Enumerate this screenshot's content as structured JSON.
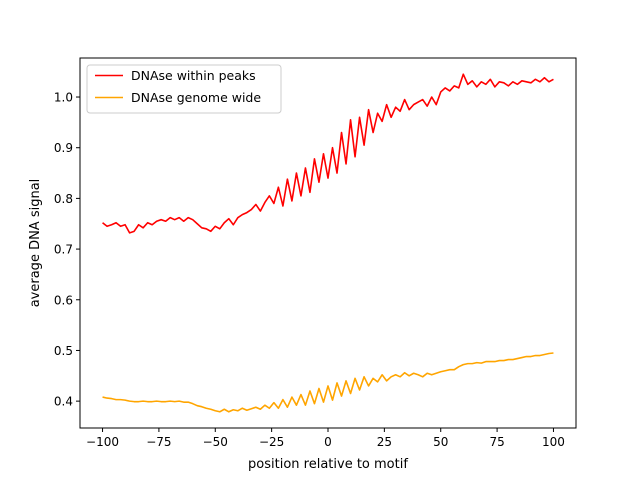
{
  "chart_data": {
    "type": "line",
    "xlabel": "position relative to motif",
    "ylabel": "average DNA signal",
    "xlim": [
      -110,
      110
    ],
    "ylim": [
      0.347,
      1.077
    ],
    "xticks": [
      -100,
      -75,
      -50,
      -25,
      0,
      25,
      50,
      75,
      100
    ],
    "xtick_labels": [
      "−100",
      "−75",
      "−50",
      "−25",
      "0",
      "25",
      "50",
      "75",
      "100"
    ],
    "yticks": [
      0.4,
      0.5,
      0.6,
      0.7,
      0.8,
      0.9,
      1.0
    ],
    "ytick_labels": [
      "0.4",
      "0.5",
      "0.6",
      "0.7",
      "0.8",
      "0.9",
      "1.0"
    ],
    "legend_position": "top-left",
    "series": [
      {
        "name": "DNAse within peaks",
        "color": "#ff0000",
        "x": [
          -100,
          -98,
          -96,
          -94,
          -92,
          -90,
          -88,
          -86,
          -84,
          -82,
          -80,
          -78,
          -76,
          -74,
          -72,
          -70,
          -68,
          -66,
          -64,
          -62,
          -60,
          -58,
          -56,
          -54,
          -52,
          -50,
          -48,
          -46,
          -44,
          -42,
          -40,
          -38,
          -36,
          -34,
          -32,
          -30,
          -28,
          -26,
          -24,
          -22,
          -20,
          -18,
          -16,
          -14,
          -12,
          -10,
          -8,
          -6,
          -4,
          -2,
          0,
          2,
          4,
          6,
          8,
          10,
          12,
          14,
          16,
          18,
          20,
          22,
          24,
          26,
          28,
          30,
          32,
          34,
          36,
          38,
          40,
          42,
          44,
          46,
          48,
          50,
          52,
          54,
          56,
          58,
          60,
          62,
          64,
          66,
          68,
          70,
          72,
          74,
          76,
          78,
          80,
          82,
          84,
          86,
          88,
          90,
          92,
          94,
          96,
          98,
          100
        ],
        "values": [
          0.752,
          0.745,
          0.748,
          0.752,
          0.745,
          0.748,
          0.732,
          0.735,
          0.748,
          0.742,
          0.752,
          0.748,
          0.755,
          0.758,
          0.755,
          0.762,
          0.758,
          0.762,
          0.755,
          0.762,
          0.758,
          0.75,
          0.742,
          0.74,
          0.735,
          0.745,
          0.74,
          0.752,
          0.76,
          0.748,
          0.762,
          0.768,
          0.772,
          0.778,
          0.788,
          0.775,
          0.792,
          0.805,
          0.79,
          0.822,
          0.785,
          0.838,
          0.795,
          0.85,
          0.805,
          0.86,
          0.812,
          0.878,
          0.832,
          0.888,
          0.84,
          0.9,
          0.85,
          0.93,
          0.868,
          0.955,
          0.882,
          0.96,
          0.905,
          0.975,
          0.93,
          0.968,
          0.952,
          0.985,
          0.96,
          0.98,
          0.972,
          0.995,
          0.975,
          0.985,
          0.99,
          0.995,
          0.982,
          1.0,
          0.985,
          1.01,
          1.018,
          1.012,
          1.022,
          1.018,
          1.045,
          1.025,
          1.032,
          1.02,
          1.03,
          1.025,
          1.035,
          1.02,
          1.03,
          1.028,
          1.022,
          1.03,
          1.025,
          1.032,
          1.03,
          1.028,
          1.035,
          1.03,
          1.038,
          1.03,
          1.035
        ]
      },
      {
        "name": "DNAse genome wide",
        "color": "#ffa500",
        "x": [
          -100,
          -98,
          -96,
          -94,
          -92,
          -90,
          -88,
          -86,
          -84,
          -82,
          -80,
          -78,
          -76,
          -74,
          -72,
          -70,
          -68,
          -66,
          -64,
          -62,
          -60,
          -58,
          -56,
          -54,
          -52,
          -50,
          -48,
          -46,
          -44,
          -42,
          -40,
          -38,
          -36,
          -34,
          -32,
          -30,
          -28,
          -26,
          -24,
          -22,
          -20,
          -18,
          -16,
          -14,
          -12,
          -10,
          -8,
          -6,
          -4,
          -2,
          0,
          2,
          4,
          6,
          8,
          10,
          12,
          14,
          16,
          18,
          20,
          22,
          24,
          26,
          28,
          30,
          32,
          34,
          36,
          38,
          40,
          42,
          44,
          46,
          48,
          50,
          52,
          54,
          56,
          58,
          60,
          62,
          64,
          66,
          68,
          70,
          72,
          74,
          76,
          78,
          80,
          82,
          84,
          86,
          88,
          90,
          92,
          94,
          96,
          98,
          100
        ],
        "values": [
          0.408,
          0.406,
          0.405,
          0.403,
          0.403,
          0.402,
          0.4,
          0.399,
          0.399,
          0.4,
          0.399,
          0.399,
          0.4,
          0.399,
          0.399,
          0.4,
          0.399,
          0.4,
          0.398,
          0.398,
          0.395,
          0.391,
          0.389,
          0.386,
          0.384,
          0.381,
          0.379,
          0.384,
          0.379,
          0.383,
          0.381,
          0.386,
          0.382,
          0.385,
          0.388,
          0.384,
          0.392,
          0.386,
          0.397,
          0.386,
          0.403,
          0.388,
          0.408,
          0.392,
          0.413,
          0.392,
          0.42,
          0.395,
          0.425,
          0.398,
          0.43,
          0.402,
          0.436,
          0.41,
          0.44,
          0.415,
          0.445,
          0.422,
          0.448,
          0.43,
          0.445,
          0.438,
          0.452,
          0.44,
          0.448,
          0.452,
          0.448,
          0.456,
          0.45,
          0.455,
          0.452,
          0.448,
          0.455,
          0.452,
          0.455,
          0.458,
          0.46,
          0.462,
          0.462,
          0.468,
          0.472,
          0.474,
          0.474,
          0.476,
          0.475,
          0.478,
          0.478,
          0.478,
          0.48,
          0.48,
          0.482,
          0.482,
          0.484,
          0.486,
          0.488,
          0.488,
          0.49,
          0.49,
          0.492,
          0.494,
          0.495
        ]
      }
    ]
  }
}
